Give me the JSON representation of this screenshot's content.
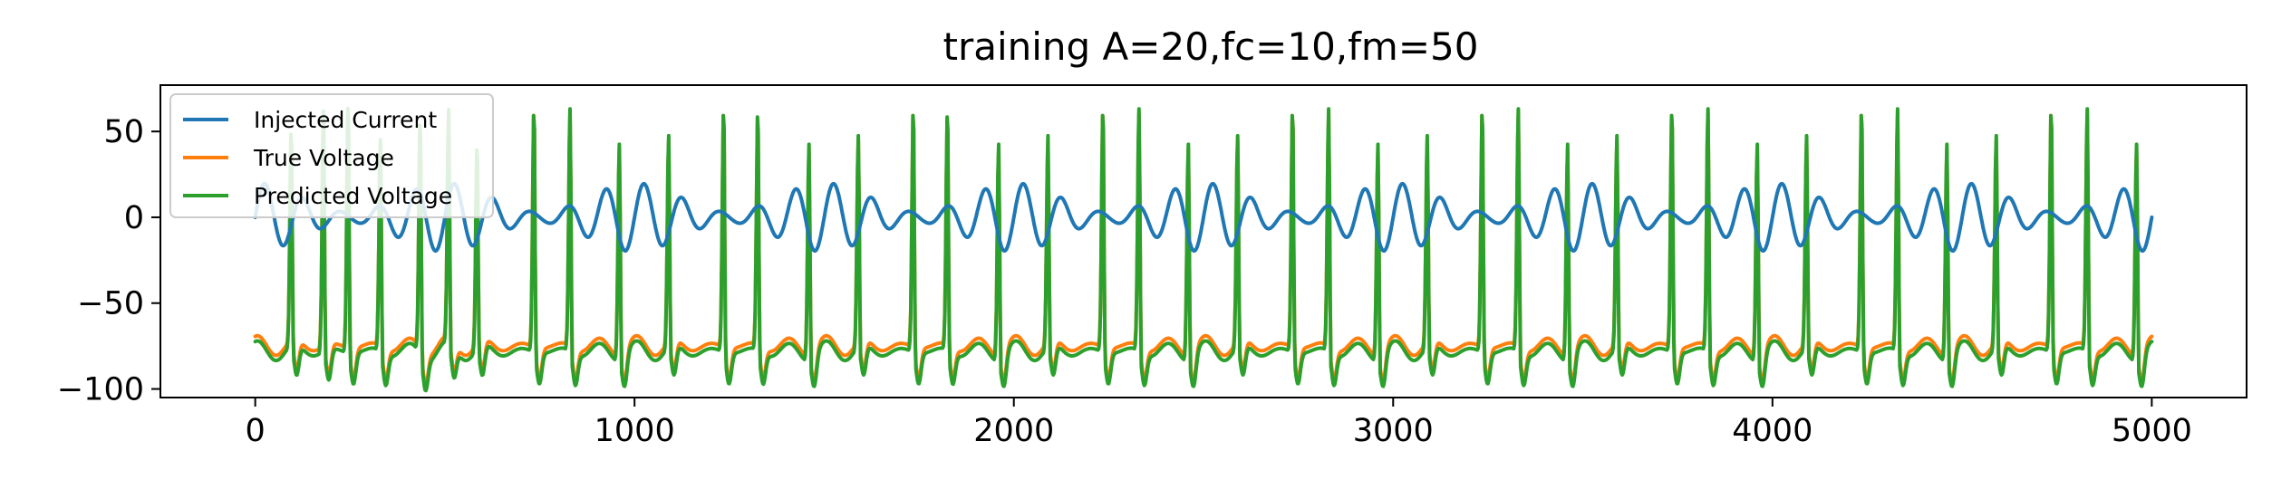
{
  "chart_data": {
    "type": "line",
    "title": "training A=20,fc=10,fm=50",
    "xlabel": "",
    "ylabel": "",
    "xlim": [
      -250,
      5250
    ],
    "ylim": [
      -105,
      77
    ],
    "xticks": [
      0,
      1000,
      2000,
      3000,
      4000,
      5000
    ],
    "xtick_labels": [
      "0",
      "1000",
      "2000",
      "3000",
      "4000",
      "5000"
    ],
    "yticks": [
      50,
      0,
      -50,
      -100
    ],
    "ytick_labels": [
      "50",
      "0",
      "−50",
      "−100"
    ],
    "grid": false,
    "legend_position": "top-left",
    "x_range": [
      0,
      5000
    ],
    "series": [
      {
        "name": "Injected Current",
        "color": "#1f77b4",
        "description": "amplitude-modulated sinusoid, period ~100, envelope 500",
        "points": [
          [
            0,
            0
          ],
          [
            25,
            3.4
          ],
          [
            50,
            0
          ],
          [
            75,
            -3.4
          ],
          [
            100,
            0
          ],
          [
            125,
            5
          ],
          [
            150,
            0
          ],
          [
            175,
            -8
          ],
          [
            200,
            0
          ],
          [
            225,
            11
          ],
          [
            250,
            0
          ],
          [
            275,
            -14
          ],
          [
            300,
            0
          ],
          [
            325,
            17
          ],
          [
            350,
            0
          ],
          [
            375,
            -17
          ],
          [
            400,
            0
          ],
          [
            425,
            14
          ],
          [
            450,
            0
          ],
          [
            475,
            -11
          ],
          [
            500,
            0
          ],
          [
            525,
            8
          ],
          [
            550,
            0
          ],
          [
            575,
            -5
          ],
          [
            600,
            0
          ],
          [
            625,
            -5
          ],
          [
            650,
            0
          ],
          [
            675,
            -11
          ],
          [
            700,
            0
          ],
          [
            725,
            17
          ],
          [
            750,
            0
          ],
          [
            775,
            -13
          ],
          [
            800,
            0
          ],
          [
            825,
            9
          ],
          [
            850,
            0
          ],
          [
            875,
            -5
          ],
          [
            900,
            0
          ],
          [
            925,
            7
          ],
          [
            950,
            0
          ],
          [
            975,
            3
          ],
          [
            1000,
            0
          ]
        ]
      },
      {
        "name": "True Voltage",
        "color": "#ff7f0e",
        "description": "spiking membrane voltage, baseline ~-75, spike peaks up to ~65",
        "resting": -75,
        "spike_times": [
          95,
          180,
          245,
          330,
          435,
          510,
          585,
          735,
          830,
          960,
          1090,
          1235,
          1325,
          1460,
          1590,
          1735,
          1825,
          1960,
          2090,
          2235,
          2330,
          2460,
          2590,
          2735,
          2830,
          2960,
          3090,
          3235,
          3330,
          3460,
          3590,
          3735,
          3830,
          3960,
          4090,
          4235,
          4330,
          4460,
          4590,
          4735,
          4830,
          4960
        ],
        "spike_peaks": [
          45,
          58,
          65,
          42,
          58,
          55,
          40,
          65,
          60,
          45,
          42,
          65,
          60,
          45,
          42,
          65,
          60,
          45,
          42,
          65,
          60,
          45,
          42,
          65,
          60,
          45,
          42,
          65,
          60,
          45,
          42,
          65,
          60,
          45,
          42,
          65,
          60,
          45,
          42,
          65,
          60,
          45
        ],
        "trough": -95
      },
      {
        "name": "Predicted Voltage",
        "color": "#2ca02c",
        "description": "predicted voltage closely tracking true voltage",
        "resting": -78,
        "spike_times": [
          95,
          180,
          245,
          330,
          435,
          510,
          585,
          735,
          830,
          960,
          1090,
          1235,
          1325,
          1460,
          1590,
          1735,
          1825,
          1960,
          2090,
          2235,
          2330,
          2460,
          2590,
          2735,
          2830,
          2960,
          3090,
          3235,
          3330,
          3460,
          3590,
          3735,
          3830,
          3960,
          4090,
          4235,
          4330,
          4460,
          4590,
          4735,
          4830,
          4960
        ],
        "spike_peaks": [
          50,
          62,
          70,
          45,
          60,
          57,
          43,
          65,
          63,
          48,
          45,
          65,
          63,
          48,
          45,
          65,
          63,
          48,
          45,
          65,
          63,
          48,
          45,
          65,
          63,
          48,
          45,
          65,
          63,
          48,
          45,
          65,
          63,
          48,
          45,
          65,
          63,
          48,
          45,
          65,
          63,
          48
        ],
        "trough": -98
      }
    ]
  }
}
